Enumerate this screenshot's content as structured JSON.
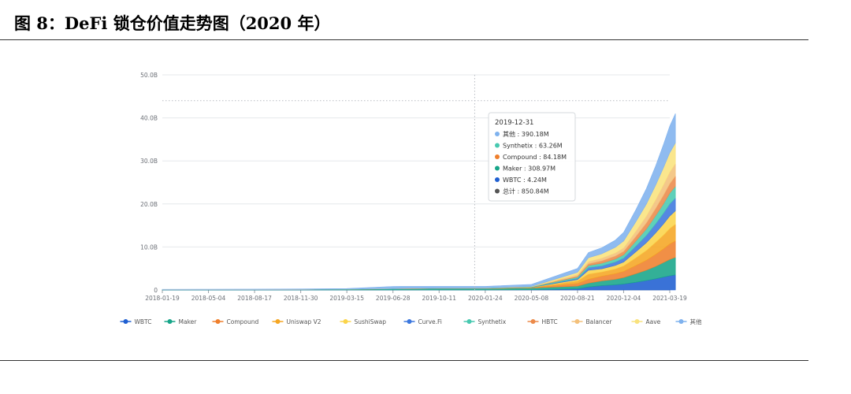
{
  "page": {
    "title": "图 8：DeFi 锁仓价值走势图（2020 年）"
  },
  "chart_data": {
    "type": "area",
    "stacked": true,
    "grid": true,
    "legend_position": "bottom",
    "y_ticks": [
      "0",
      "10.0B",
      "20.0B",
      "30.0B",
      "40.0B",
      "50.0B"
    ],
    "y_tick_values": [
      0,
      10,
      20,
      30,
      40,
      50
    ],
    "ylim": [
      0,
      50
    ],
    "y_unit": "B",
    "x_ticks": [
      "2018-01-19",
      "2018-05-04",
      "2018-08-17",
      "2018-11-30",
      "2019-03-15",
      "2019-06-28",
      "2019-10-11",
      "2020-01-24",
      "2020-05-08",
      "2020-08-21",
      "2020-12-04",
      "2021-03-19"
    ],
    "dates": [
      "2018-01-19",
      "2018-05-04",
      "2018-08-17",
      "2018-11-30",
      "2019-03-15",
      "2019-06-28",
      "2019-10-11",
      "2020-01-24",
      "2020-05-08",
      "2020-08-21",
      "2020-09-15",
      "2020-10-15",
      "2020-11-15",
      "2020-12-04",
      "2021-01-01",
      "2021-01-25",
      "2021-02-15",
      "2021-03-05",
      "2021-03-19",
      "2021-04-01"
    ],
    "series": [
      {
        "name": "WBTC",
        "color": "#1f5fd1",
        "values": [
          0,
          0,
          0,
          0,
          0,
          0,
          0.01,
          0.01,
          0.05,
          0.3,
          0.7,
          1.0,
          1.2,
          1.4,
          1.8,
          2.2,
          2.6,
          3.0,
          3.3,
          3.5
        ]
      },
      {
        "name": "Maker",
        "color": "#17a589",
        "values": [
          0.08,
          0.1,
          0.1,
          0.12,
          0.15,
          0.25,
          0.3,
          0.3,
          0.4,
          0.6,
          0.9,
          1.1,
          1.3,
          1.5,
          2.0,
          2.4,
          2.9,
          3.4,
          3.8,
          4.1
        ]
      },
      {
        "name": "Compound",
        "color": "#ef7f2c",
        "values": [
          0,
          0,
          0,
          0,
          0.01,
          0.05,
          0.08,
          0.08,
          0.1,
          0.6,
          0.9,
          1.1,
          1.3,
          1.4,
          1.9,
          2.3,
          2.8,
          3.2,
          3.6,
          3.8
        ]
      },
      {
        "name": "Uniswap V2",
        "color": "#f5a623",
        "values": [
          0,
          0,
          0,
          0,
          0,
          0,
          0,
          0,
          0.05,
          0.6,
          1.2,
          1.0,
          1.1,
          1.3,
          1.8,
          2.3,
          2.8,
          3.2,
          3.6,
          3.9
        ]
      },
      {
        "name": "SushiSwap",
        "color": "#fbd44a",
        "values": [
          0,
          0,
          0,
          0,
          0,
          0,
          0,
          0,
          0,
          0.3,
          0.9,
          0.7,
          0.8,
          0.9,
          1.4,
          1.8,
          2.2,
          2.6,
          2.9,
          3.1
        ]
      },
      {
        "name": "Curve.Fi",
        "color": "#3d78de",
        "values": [
          0,
          0,
          0,
          0,
          0,
          0,
          0,
          0,
          0.03,
          0.3,
          0.6,
          0.7,
          0.8,
          0.9,
          1.3,
          1.7,
          2.1,
          2.5,
          2.8,
          3.0
        ]
      },
      {
        "name": "Synthetix",
        "color": "#48c9b0",
        "values": [
          0.01,
          0.01,
          0.01,
          0.01,
          0.02,
          0.03,
          0.05,
          0.06,
          0.1,
          0.3,
          0.5,
          0.6,
          0.7,
          0.8,
          1.2,
          1.5,
          1.9,
          2.2,
          2.5,
          2.7
        ]
      },
      {
        "name": "HBTC",
        "color": "#ec8a4a",
        "values": [
          0,
          0,
          0,
          0,
          0,
          0,
          0,
          0,
          0,
          0.2,
          0.4,
          0.6,
          0.7,
          0.8,
          1.1,
          1.4,
          1.7,
          2.0,
          2.2,
          2.4
        ]
      },
      {
        "name": "Balancer",
        "color": "#f3c07a",
        "values": [
          0,
          0,
          0,
          0,
          0,
          0,
          0,
          0,
          0.02,
          0.4,
          0.5,
          0.6,
          0.7,
          0.8,
          1.2,
          1.6,
          2.0,
          2.4,
          2.7,
          2.9
        ]
      },
      {
        "name": "Aave",
        "color": "#f9e27d",
        "values": [
          0,
          0,
          0,
          0,
          0,
          0,
          0,
          0,
          0.05,
          0.5,
          0.9,
          1.0,
          1.3,
          1.6,
          2.2,
          2.8,
          3.4,
          4.0,
          4.5,
          4.8
        ]
      },
      {
        "name": "其他",
        "color": "#7fb2ee",
        "values": [
          0.05,
          0.08,
          0.1,
          0.1,
          0.15,
          0.5,
          0.4,
          0.4,
          0.5,
          0.9,
          1.2,
          1.4,
          1.7,
          2.0,
          2.8,
          3.6,
          4.5,
          5.4,
          6.2,
          6.8
        ]
      }
    ],
    "reference_line": {
      "value": 44
    },
    "tooltip": {
      "date": "2019-12-31",
      "rows": [
        {
          "label": "其他 : 390.18M",
          "color": "#7fb2ee"
        },
        {
          "label": "Synthetix : 63.26M",
          "color": "#48c9b0"
        },
        {
          "label": "Compound : 84.18M",
          "color": "#ef7f2c"
        },
        {
          "label": "Maker : 308.97M",
          "color": "#17a589"
        },
        {
          "label": "WBTC : 4.24M",
          "color": "#1f5fd1"
        },
        {
          "label": "总计 : 850.84M",
          "color": "#555555"
        }
      ]
    }
  }
}
